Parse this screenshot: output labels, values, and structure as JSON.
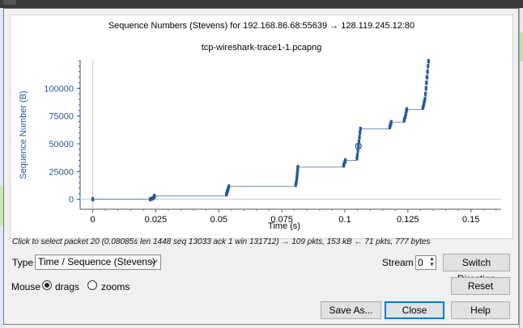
{
  "graph": {
    "title": "Sequence Numbers (Stevens) for 192.168.86.68:55639 → 128.119.245.12:80",
    "subtitle": "tcp-wireshark-trace1-1.pcapng",
    "accent_color": "#2b5797"
  },
  "chart_data": {
    "type": "scatter",
    "title": "Sequence Numbers (Stevens) for 192.168.86.68:55639 → 128.119.245.12:80",
    "subtitle": "tcp-wireshark-trace1-1.pcapng",
    "xlabel": "Time (s)",
    "ylabel": "Sequence Number (B)",
    "xlim": [
      -0.005,
      0.162
    ],
    "ylim": [
      -9000,
      125000
    ],
    "x_ticks": [
      0,
      0.025,
      0.05,
      0.075,
      0.1,
      0.125,
      0.15
    ],
    "x_tick_labels": [
      "0",
      "0.025",
      "0.05",
      "0.075",
      "0.1",
      "0.125",
      "0.15"
    ],
    "y_ticks": [
      0,
      25000,
      50000,
      75000,
      100000
    ],
    "y_tick_labels": [
      "0",
      "25000",
      "50000",
      "75000",
      "100000"
    ],
    "grid": false,
    "series": [
      {
        "points": [
          [
            0.0,
            0
          ],
          [
            0.0228,
            0
          ],
          [
            0.0236,
            700
          ],
          [
            0.0242,
            1500
          ],
          [
            0.0244,
            2200
          ],
          [
            0.0245,
            3000
          ],
          [
            0.053,
            4400
          ],
          [
            0.0532,
            5800
          ],
          [
            0.0534,
            7200
          ],
          [
            0.0536,
            8700
          ],
          [
            0.0538,
            10100
          ],
          [
            0.054,
            11500
          ],
          [
            0.0805,
            13000
          ],
          [
            0.0807,
            15000
          ],
          [
            0.0809,
            17500
          ],
          [
            0.081,
            20000
          ],
          [
            0.0811,
            22500
          ],
          [
            0.0812,
            25000
          ],
          [
            0.0813,
            27500
          ],
          [
            0.0814,
            29000
          ],
          [
            0.0995,
            30500
          ],
          [
            0.0997,
            32000
          ],
          [
            0.1,
            33500
          ],
          [
            0.1002,
            35000
          ],
          [
            0.1048,
            37000
          ],
          [
            0.105,
            40000
          ],
          [
            0.1052,
            44000
          ],
          [
            0.1054,
            48000
          ],
          [
            0.1056,
            52000
          ],
          [
            0.1058,
            56000
          ],
          [
            0.106,
            60000
          ],
          [
            0.1062,
            63500
          ],
          [
            0.1178,
            65000
          ],
          [
            0.118,
            66500
          ],
          [
            0.1182,
            68000
          ],
          [
            0.1184,
            69500
          ],
          [
            0.1235,
            71000
          ],
          [
            0.1237,
            72500
          ],
          [
            0.124,
            74500
          ],
          [
            0.1242,
            77000
          ],
          [
            0.1244,
            79500
          ],
          [
            0.1246,
            81000
          ],
          [
            0.131,
            82500
          ],
          [
            0.1312,
            84500
          ],
          [
            0.1314,
            86500
          ],
          [
            0.1316,
            88500
          ],
          [
            0.1318,
            90500
          ],
          [
            0.132,
            95000
          ],
          [
            0.1322,
            100000
          ],
          [
            0.1324,
            105000
          ],
          [
            0.1326,
            110000
          ],
          [
            0.1328,
            115000
          ],
          [
            0.133,
            120000
          ],
          [
            0.1332,
            124500
          ]
        ],
        "selected_index": 27
      }
    ]
  },
  "status": {
    "hint": "Click to select packet 20 (0.08085s len 1448 seq 13033 ack 1 win 131712) → 109 pkts, 153 kB ← 71 pkts, 777 bytes"
  },
  "controls": {
    "type_label": "Type",
    "type_value": "Time / Sequence (Stevens)",
    "stream_label": "Stream",
    "stream_value": "0",
    "switch_direction": "Switch Direction",
    "mouse_label": "Mouse",
    "drags_label": "drags",
    "zooms_label": "zooms",
    "reset": "Reset",
    "save_as": "Save As...",
    "close": "Close",
    "help": "Help"
  }
}
